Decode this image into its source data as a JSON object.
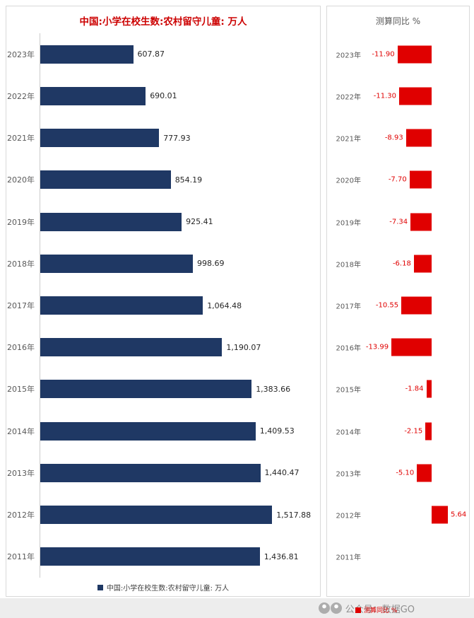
{
  "colors": {
    "navy_bar": "#1f3864",
    "red_bar": "#e00000",
    "left_title_red": "#cc0000",
    "axis_label_gray": "#595959",
    "panel_border": "#d9d9d9",
    "footer_bg": "#ededed"
  },
  "footer": {
    "text": "公众号：数据GO",
    "icons": [
      "official-account-logo",
      "official-account-logo"
    ]
  },
  "chart_data": [
    {
      "type": "bar",
      "orientation": "horizontal",
      "title": "中国:小学在校生数:农村留守儿童: 万人",
      "legend": "中国:小学在校生数:农村留守儿童: 万人",
      "legend_position": "bottom",
      "bar_color": "#1f3864",
      "unit": "万人",
      "xlim": [
        0,
        1600
      ],
      "categories": [
        "2023年",
        "2022年",
        "2021年",
        "2020年",
        "2019年",
        "2018年",
        "2017年",
        "2016年",
        "2015年",
        "2014年",
        "2013年",
        "2012年",
        "2011年"
      ],
      "values": [
        607.87,
        690.01,
        777.93,
        854.19,
        925.41,
        998.69,
        1064.48,
        1190.07,
        1383.66,
        1409.53,
        1440.47,
        1517.88,
        1436.81
      ],
      "value_labels": [
        "607.87",
        "690.01",
        "777.93",
        "854.19",
        "925.41",
        "998.69",
        "1,064.48",
        "1,190.07",
        "1,383.66",
        "1,409.53",
        "1,440.47",
        "1,517.88",
        "1,436.81"
      ]
    },
    {
      "type": "bar",
      "orientation": "horizontal",
      "title": "测算同比 %",
      "legend": "测算同比 %",
      "legend_position": "bottom",
      "bar_color": "#e00000",
      "unit": "%",
      "xlim": [
        -16,
        8
      ],
      "categories": [
        "2023年",
        "2022年",
        "2021年",
        "2020年",
        "2019年",
        "2018年",
        "2017年",
        "2016年",
        "2015年",
        "2014年",
        "2013年",
        "2012年",
        "2011年"
      ],
      "values": [
        -11.9,
        -11.3,
        -8.93,
        -7.7,
        -7.34,
        -6.18,
        -10.55,
        -13.99,
        -1.84,
        -2.15,
        -5.1,
        5.64,
        null
      ],
      "value_labels": [
        "-11.90",
        "-11.30",
        "-8.93",
        "-7.70",
        "-7.34",
        "-6.18",
        "-10.55",
        "-13.99",
        "-1.84",
        "-2.15",
        "-5.10",
        "5.64",
        ""
      ]
    }
  ]
}
